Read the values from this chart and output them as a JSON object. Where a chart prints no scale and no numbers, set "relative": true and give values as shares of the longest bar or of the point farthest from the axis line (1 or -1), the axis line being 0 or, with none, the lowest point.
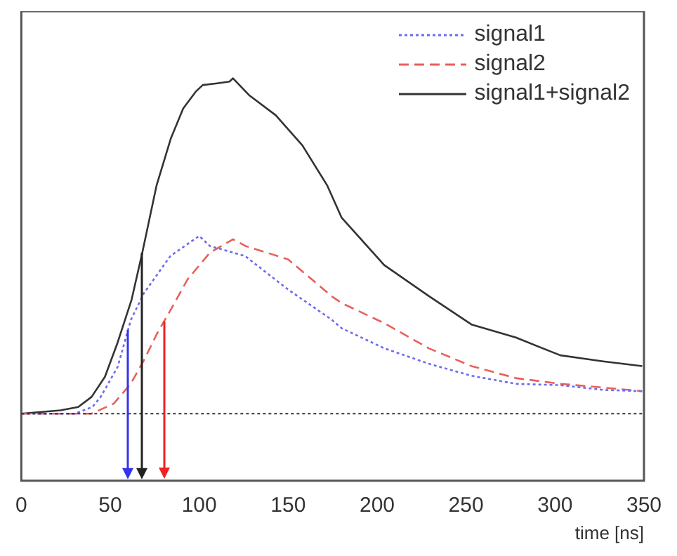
{
  "chart_data": {
    "type": "line",
    "xlabel": "time [ns]",
    "relative": true,
    "xlim": [
      0,
      350
    ],
    "xticks": [
      0,
      50,
      100,
      150,
      200,
      250,
      300,
      350
    ],
    "legend": "top right",
    "grid": false,
    "marker": "none",
    "series": [
      {
        "name": "signal1",
        "color": "#6b6bf0",
        "line_style": "dotted",
        "x": [
          0,
          30,
          40,
          44.6,
          54.2,
          61.6,
          69,
          83.8,
          100,
          106,
          125.8,
          150,
          174.5,
          180,
          204,
          229,
          253,
          278,
          303,
          327,
          349
        ],
        "values": [
          0,
          0,
          0.02,
          0.05,
          0.14,
          0.28,
          0.36,
          0.47,
          0.53,
          0.5,
          0.47,
          0.37,
          0.28,
          0.255,
          0.195,
          0.149,
          0.113,
          0.089,
          0.085,
          0.071,
          0.067
        ]
      },
      {
        "name": "signal2",
        "color": "#e8605a",
        "line_style": "dashed",
        "x": [
          0,
          39.5,
          52,
          61.6,
          69,
          76.4,
          84,
          93.4,
          106,
          119,
          126,
          150,
          174.5,
          180,
          204,
          229,
          253,
          278,
          303,
          327,
          349
        ],
        "values": [
          0,
          0,
          0.03,
          0.09,
          0.16,
          0.24,
          0.31,
          0.4,
          0.48,
          0.52,
          0.5,
          0.46,
          0.35,
          0.33,
          0.27,
          0.195,
          0.142,
          0.106,
          0.089,
          0.078,
          0.067
        ]
      },
      {
        "name": "signal1+signal2",
        "color": "#333333",
        "line_style": "solid",
        "x": [
          0,
          22,
          32,
          39.5,
          47,
          54,
          62,
          68,
          76,
          84,
          91,
          98,
          102,
          110,
          117,
          119,
          128,
          143,
          158,
          172,
          180,
          204,
          229,
          253,
          278,
          303,
          327,
          349
        ],
        "values": [
          0,
          0.01,
          0.02,
          0.05,
          0.11,
          0.21,
          0.34,
          0.48,
          0.68,
          0.82,
          0.91,
          0.96,
          0.98,
          0.985,
          0.99,
          1,
          0.95,
          0.89,
          0.8,
          0.68,
          0.585,
          0.443,
          0.351,
          0.266,
          0.227,
          0.174,
          0.156,
          0.142
        ]
      }
    ],
    "ref_lines": [
      {
        "axis": "y",
        "value": 0,
        "color": "#333333",
        "line_style": "dotted"
      },
      {
        "axis": "x",
        "value": 60,
        "color": "#3333ee"
      },
      {
        "axis": "x",
        "value": 68,
        "color": "#222222"
      },
      {
        "axis": "x",
        "value": 80,
        "color": "#ee2222"
      }
    ]
  }
}
